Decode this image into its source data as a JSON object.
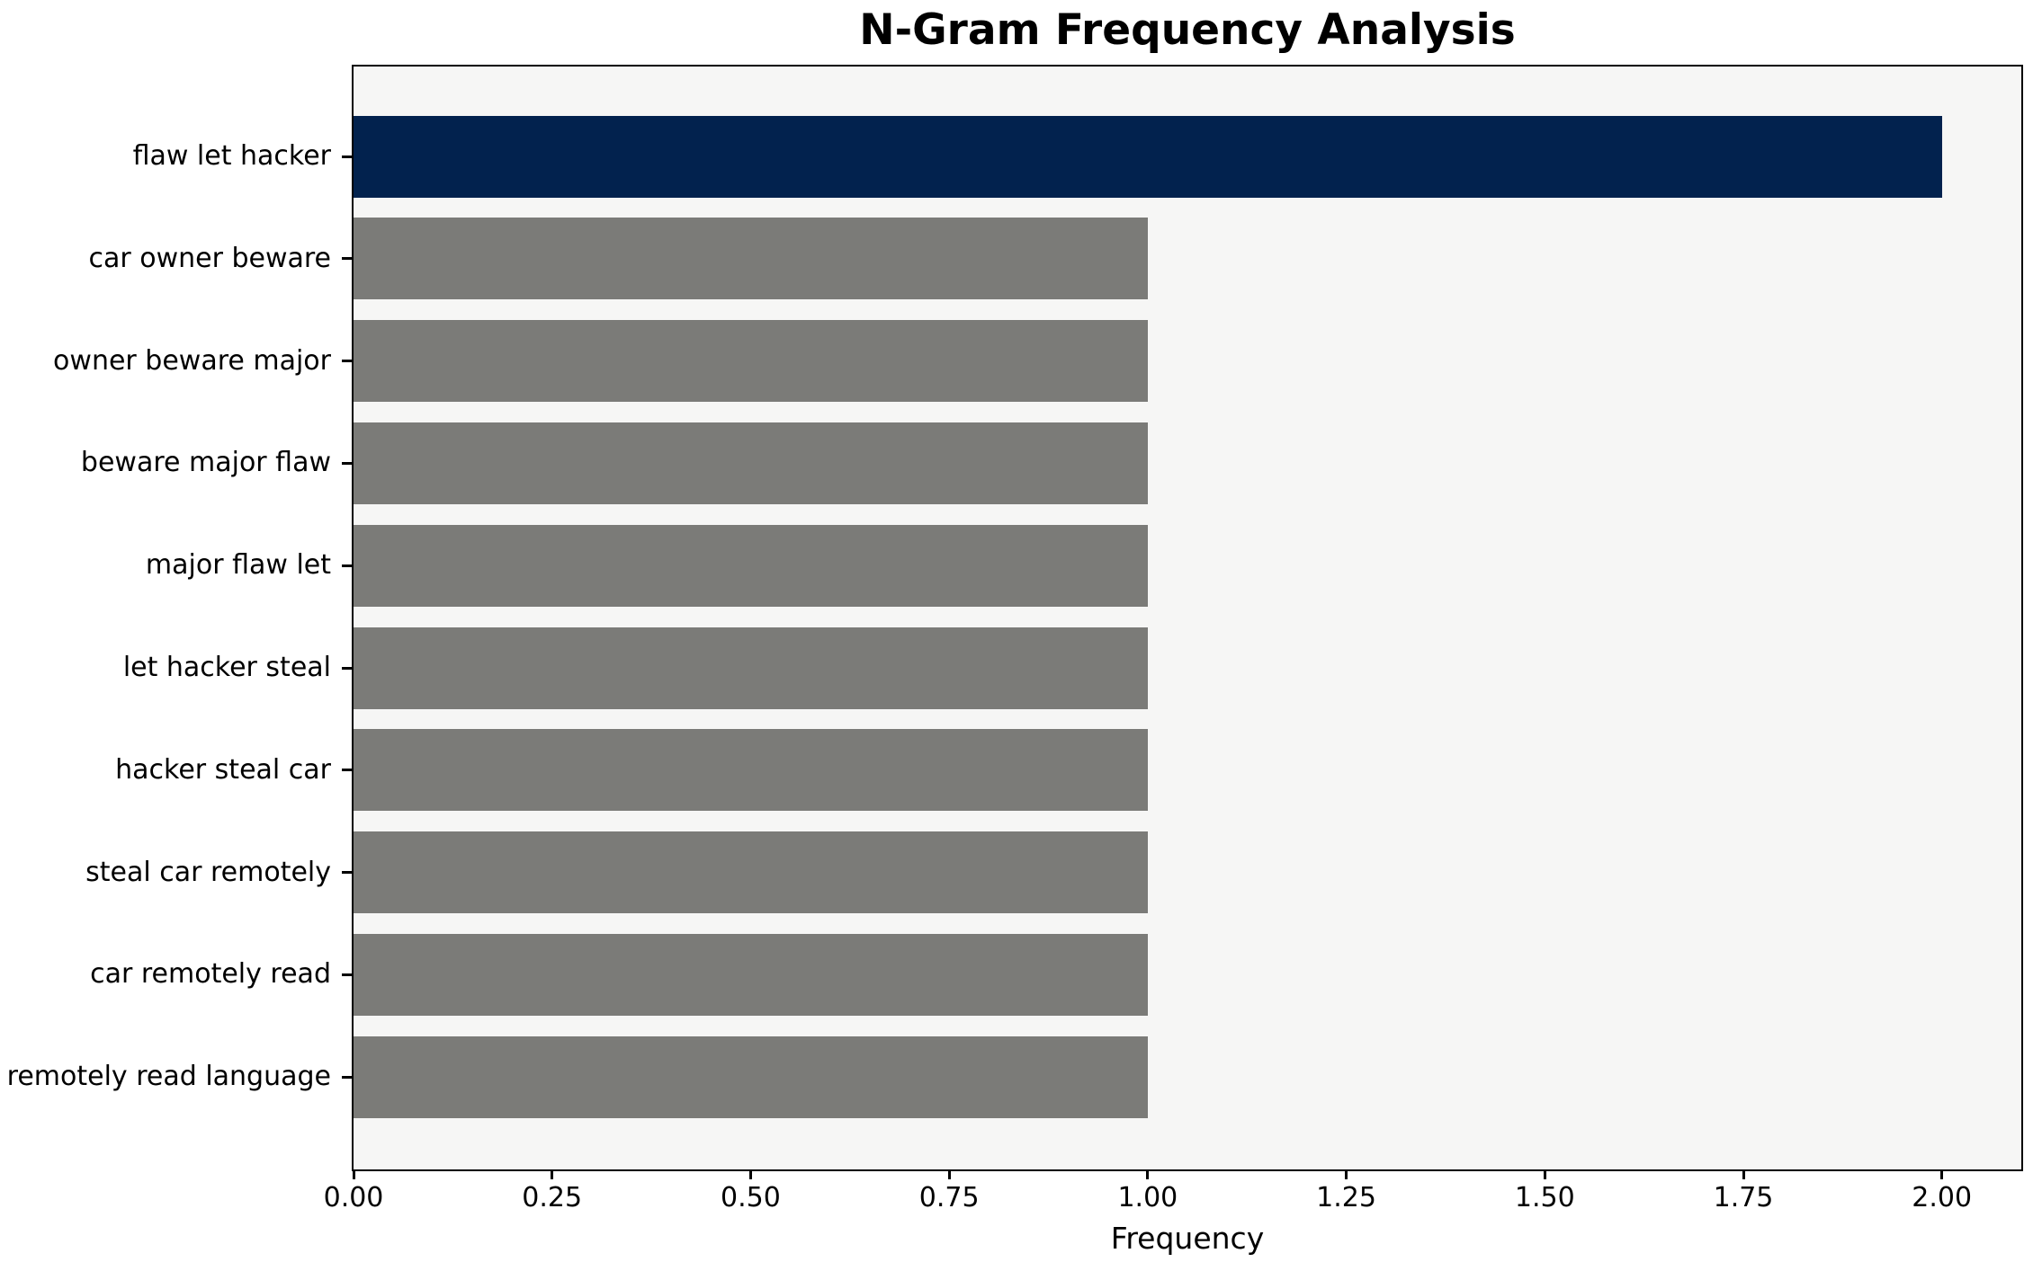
{
  "chart_data": {
    "type": "bar",
    "orientation": "horizontal",
    "title": "N-Gram Frequency Analysis",
    "xlabel": "Frequency",
    "ylabel": "",
    "categories": [
      "flaw let hacker",
      "car owner beware",
      "owner beware major",
      "beware major flaw",
      "major flaw let",
      "let hacker steal",
      "hacker steal car",
      "steal car remotely",
      "car remotely read",
      "remotely read language"
    ],
    "values": [
      2,
      1,
      1,
      1,
      1,
      1,
      1,
      1,
      1,
      1
    ],
    "xlim": [
      0,
      2.1
    ],
    "x_ticks": [
      0,
      0.25,
      0.5,
      0.75,
      1.0,
      1.25,
      1.5,
      1.75,
      2.0
    ],
    "x_tick_labels": [
      "0.00",
      "0.25",
      "0.50",
      "0.75",
      "1.00",
      "1.25",
      "1.50",
      "1.75",
      "2.00"
    ],
    "highlight_index": 0,
    "colors": {
      "highlight_bar": "#02224e",
      "default_bar": "#7b7b78",
      "plot_background": "#f6f6f5",
      "figure_background": "#ffffff",
      "spine": "#000000",
      "text": "#000000"
    },
    "grid": false,
    "legend": "none",
    "value_labels_on_bars": false
  }
}
